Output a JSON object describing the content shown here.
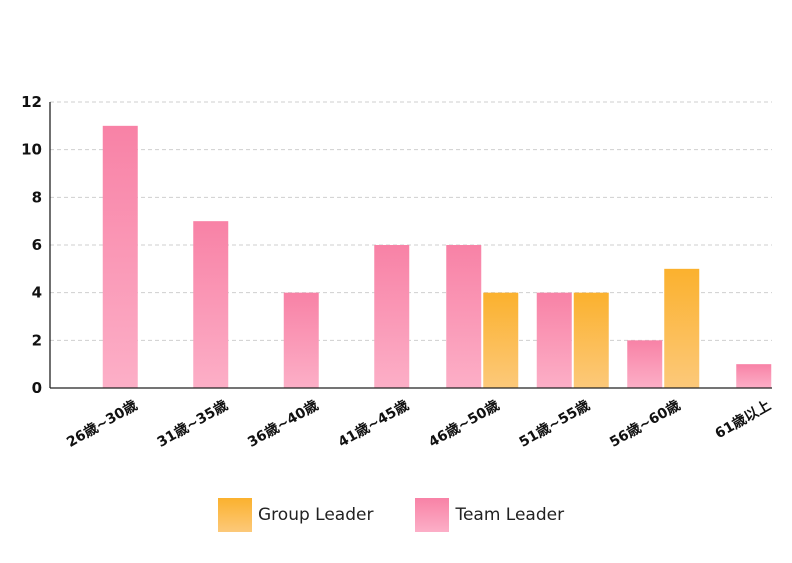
{
  "chart_data": {
    "type": "bar",
    "categories": [
      "26歳~30歳",
      "31歳~35歳",
      "36歳~40歳",
      "41歳~45歳",
      "46歳~50歳",
      "51歳~55歳",
      "56歳~60歳",
      "61歳以上"
    ],
    "series": [
      {
        "name": "Team Leader",
        "values": [
          11,
          7,
          4,
          6,
          6,
          4,
          2,
          1
        ],
        "color": "#f989aa"
      },
      {
        "name": "Group Leader",
        "values": [
          0,
          0,
          0,
          0,
          4,
          4,
          5,
          0
        ],
        "color": "#fbb53c"
      }
    ],
    "ylim": [
      0,
      12
    ],
    "yticks": [
      0,
      2,
      4,
      6,
      8,
      10,
      12
    ],
    "grid": true,
    "legend_position": "bottom"
  },
  "legend": [
    {
      "label": "Group Leader",
      "color": "#fbb53c"
    },
    {
      "label": "Team Leader",
      "color": "#f989aa"
    }
  ]
}
